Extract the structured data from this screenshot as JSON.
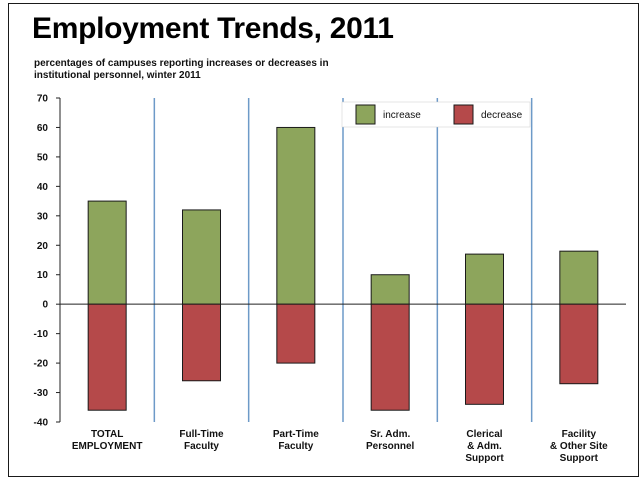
{
  "chart_data": {
    "type": "bar",
    "title": "Employment Trends, 2011",
    "subtitle": "percentages of campuses reporting increases or decreases in institutional personnel, winter 2011",
    "categories": [
      [
        "TOTAL",
        "EMPLOYMENT"
      ],
      [
        "Full-Time",
        "Faculty"
      ],
      [
        "Part-Time",
        "Faculty"
      ],
      [
        "Sr. Adm.",
        "Personnel"
      ],
      [
        "Clerical",
        "& Adm.",
        "Support"
      ],
      [
        "Facility",
        "& Other Site",
        "Support"
      ]
    ],
    "series": [
      {
        "name": "increase",
        "values": [
          35,
          32,
          60,
          10,
          17,
          18
        ],
        "color": "#8da55c"
      },
      {
        "name": "decrease",
        "values": [
          -36,
          -26,
          -20,
          -36,
          -34,
          -27
        ],
        "color": "#b5494a"
      }
    ],
    "ylim": [
      -40,
      70
    ],
    "yticks": [
      70,
      60,
      50,
      40,
      30,
      20,
      10,
      0,
      -10,
      -20,
      -30,
      -40
    ],
    "grid": false,
    "category_separators": true,
    "separator_color": "#6d9ac8",
    "legend_placement": "top-right"
  }
}
